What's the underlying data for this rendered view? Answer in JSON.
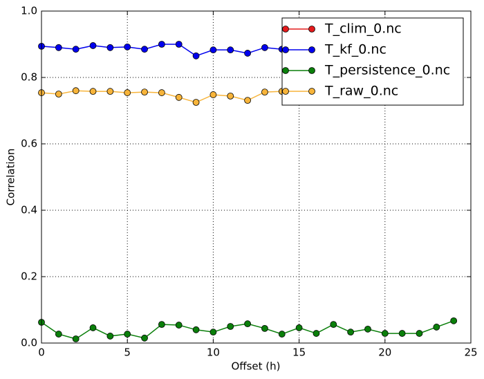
{
  "chart_data": {
    "type": "line",
    "xlabel": "Offset (h)",
    "ylabel": "Correlation",
    "x": [
      0,
      1,
      2,
      3,
      4,
      5,
      6,
      7,
      8,
      9,
      10,
      11,
      12,
      13,
      14,
      15,
      16,
      17,
      18,
      19,
      20,
      21,
      22,
      23,
      24
    ],
    "series": [
      {
        "name": "T_clim_0.nc",
        "color": "#e41a1c",
        "values": [
          null,
          null,
          null,
          null,
          null,
          null,
          null,
          null,
          null,
          null,
          null,
          null,
          null,
          null,
          null,
          null,
          null,
          null,
          null,
          null,
          null,
          null,
          null,
          null,
          null
        ]
      },
      {
        "name": "T_kf_0.nc",
        "color": "#0000ee",
        "values": [
          0.894,
          0.89,
          0.885,
          0.896,
          0.89,
          0.892,
          0.885,
          0.9,
          0.9,
          0.865,
          0.883,
          0.883,
          0.873,
          0.89,
          0.885,
          null,
          null,
          null,
          null,
          null,
          null,
          null,
          null,
          null,
          null
        ]
      },
      {
        "name": "T_persistence_0.nc",
        "color": "#0a7f0a",
        "values": [
          0.0625,
          0.027,
          0.0125,
          0.046,
          0.021,
          0.027,
          0.015,
          0.056,
          0.054,
          0.04,
          0.033,
          0.05,
          0.058,
          0.044,
          0.027,
          0.046,
          0.029,
          0.056,
          0.033,
          0.042,
          0.029,
          0.029,
          0.029,
          0.048,
          0.067
        ]
      },
      {
        "name": "T_raw_0.nc",
        "color": "#f7b43a",
        "values": [
          0.754,
          0.75,
          0.76,
          0.758,
          0.758,
          0.754,
          0.756,
          0.754,
          0.74,
          0.725,
          0.748,
          0.744,
          0.731,
          0.756,
          0.758,
          null,
          null,
          null,
          null,
          null,
          null,
          null,
          null,
          null,
          null
        ]
      }
    ],
    "xlim": [
      0,
      25
    ],
    "xticks": [
      0,
      5,
      10,
      15,
      20,
      25
    ],
    "ylim": [
      0,
      1
    ],
    "yticks": [
      {
        "value": 0,
        "label": "0.0"
      },
      {
        "value": 0.2,
        "label": "0.2"
      },
      {
        "value": 0.4,
        "label": "0.4"
      },
      {
        "value": 0.6,
        "label": "0.6"
      },
      {
        "value": 0.8,
        "label": "0.8"
      },
      {
        "value": 1,
        "label": "1.0"
      }
    ],
    "grid": true,
    "legend": "upper right"
  }
}
